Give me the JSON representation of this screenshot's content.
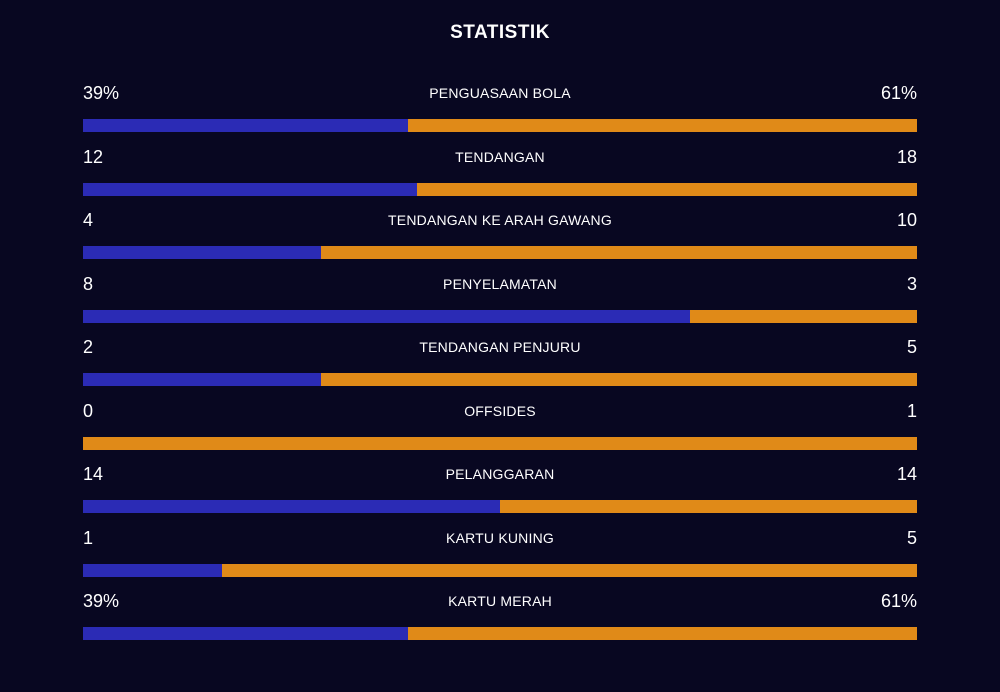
{
  "title": "STATISTIK",
  "colors": {
    "background": "#080721",
    "home": "#2b2bb5",
    "away": "#e08a18",
    "text": "#ffffff"
  },
  "stats": [
    {
      "label": "PENGUASAAN BOLA",
      "left": "39%",
      "right": "61%",
      "left_share": 0.39
    },
    {
      "label": "TENDANGAN",
      "left": "12",
      "right": "18",
      "left_share": 0.4
    },
    {
      "label": "TENDANGAN KE ARAH GAWANG",
      "left": "4",
      "right": "10",
      "left_share": 0.2857
    },
    {
      "label": "PENYELAMATAN",
      "left": "8",
      "right": "3",
      "left_share": 0.7273
    },
    {
      "label": "TENDANGAN PENJURU",
      "left": "2",
      "right": "5",
      "left_share": 0.2857
    },
    {
      "label": "OFFSIDES",
      "left": "0",
      "right": "1",
      "left_share": 0
    },
    {
      "label": "PELANGGARAN",
      "left": "14",
      "right": "14",
      "left_share": 0.5
    },
    {
      "label": "KARTU KUNING",
      "left": "1",
      "right": "5",
      "left_share": 0.1667
    },
    {
      "label": "KARTU MERAH",
      "left": "39%",
      "right": "61%",
      "left_share": 0.39
    }
  ]
}
